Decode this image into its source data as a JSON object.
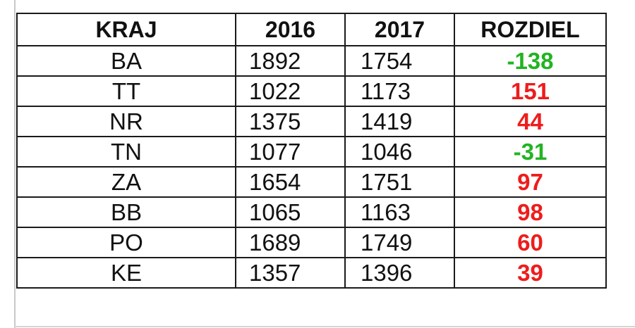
{
  "table": {
    "headers": [
      "KRAJ",
      "2016",
      "2017",
      "ROZDIEL"
    ],
    "rows": [
      {
        "kraj": "BA",
        "y2016": "1892",
        "y2017": "1754",
        "diff": "-138",
        "diff_color": "#22b422"
      },
      {
        "kraj": "TT",
        "y2016": "1022",
        "y2017": "1173",
        "diff": "151",
        "diff_color": "#ee1c1c"
      },
      {
        "kraj": "NR",
        "y2016": "1375",
        "y2017": "1419",
        "diff": "44",
        "diff_color": "#ee1c1c"
      },
      {
        "kraj": "TN",
        "y2016": "1077",
        "y2017": "1046",
        "diff": "-31",
        "diff_color": "#22b422"
      },
      {
        "kraj": "ZA",
        "y2016": "1654",
        "y2017": "1751",
        "diff": "97",
        "diff_color": "#ee1c1c"
      },
      {
        "kraj": "BB",
        "y2016": "1065",
        "y2017": "1163",
        "diff": "98",
        "diff_color": "#ee1c1c"
      },
      {
        "kraj": "PO",
        "y2016": "1689",
        "y2017": "1749",
        "diff": "60",
        "diff_color": "#ee1c1c"
      },
      {
        "kraj": "KE",
        "y2016": "1357",
        "y2017": "1396",
        "diff": "39",
        "diff_color": "#ee1c1c"
      }
    ]
  }
}
